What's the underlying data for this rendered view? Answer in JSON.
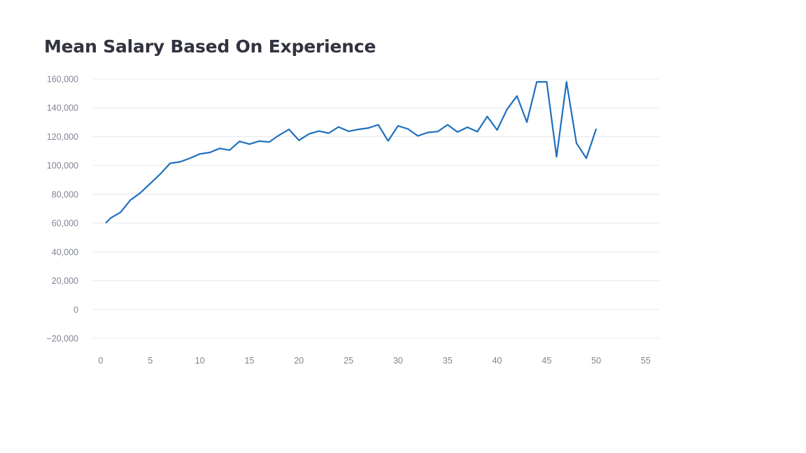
{
  "colors": {
    "line": "#1f6fbf",
    "grid": "#e6e8ec",
    "tick_text": "#808495",
    "title_text": "#31333f"
  },
  "chart_data": {
    "type": "line",
    "title": "Mean Salary Based On Experience",
    "xlabel": "",
    "ylabel": "",
    "grid": true,
    "xlim": [
      0,
      56
    ],
    "ylim": [
      -20000,
      160000
    ],
    "x_ticks": [
      0,
      5,
      10,
      15,
      20,
      25,
      30,
      35,
      40,
      45,
      50,
      55
    ],
    "y_ticks": [
      -20000,
      0,
      20000,
      40000,
      60000,
      80000,
      100000,
      120000,
      140000,
      160000
    ],
    "x_tick_labels": [
      "0",
      "5",
      "10",
      "15",
      "20",
      "25",
      "30",
      "35",
      "40",
      "45",
      "50",
      "55"
    ],
    "y_tick_labels": [
      "−20,000",
      "0",
      "20,000",
      "40,000",
      "60,000",
      "80,000",
      "100,000",
      "120,000",
      "140,000",
      "160,000"
    ],
    "series": [
      {
        "x": [
          0.5,
          1,
          2,
          3,
          4,
          5,
          6,
          7,
          8,
          9,
          10,
          11,
          12,
          13,
          14,
          15,
          16,
          17,
          18,
          19,
          20,
          21,
          22,
          23,
          24,
          25,
          26,
          27,
          28,
          29,
          30,
          31,
          32,
          33,
          34,
          35,
          36,
          37,
          38,
          39,
          40,
          41,
          42,
          43,
          44,
          45,
          46,
          47,
          48,
          49,
          50
        ],
        "values": [
          60000,
          63500,
          67500,
          76000,
          81000,
          87500,
          94000,
          101500,
          102500,
          105000,
          108000,
          109000,
          111800,
          110600,
          116700,
          114800,
          116900,
          116300,
          121000,
          125000,
          117400,
          121800,
          123900,
          122400,
          126700,
          123700,
          125000,
          126000,
          128200,
          117000,
          127500,
          125300,
          120500,
          122900,
          123500,
          128200,
          123200,
          126500,
          123400,
          134000,
          124600,
          139000,
          148200,
          130000,
          158000,
          158000,
          106000,
          158000,
          115500,
          105000,
          125500
        ]
      }
    ]
  }
}
